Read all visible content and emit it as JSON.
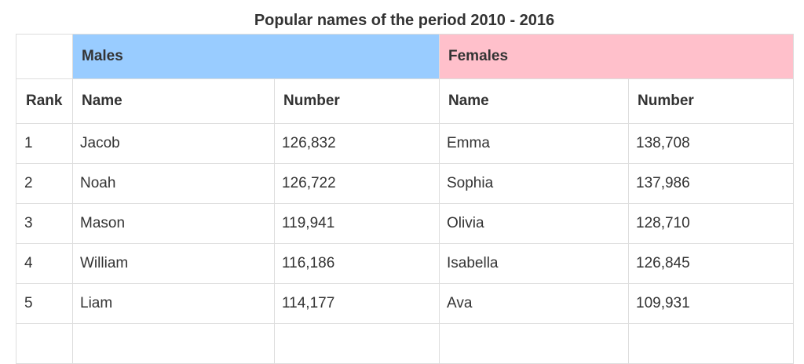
{
  "caption": "Popular names of the period 2010 - 2016",
  "groups": {
    "males": "Males",
    "females": "Females"
  },
  "headers": {
    "rank": "Rank",
    "male_name": "Name",
    "male_number": "Number",
    "female_name": "Name",
    "female_number": "Number"
  },
  "rows": [
    {
      "rank": "1",
      "male_name": "Jacob",
      "male_number": "126,832",
      "female_name": "Emma",
      "female_number": "138,708"
    },
    {
      "rank": "2",
      "male_name": "Noah",
      "male_number": "126,722",
      "female_name": "Sophia",
      "female_number": "137,986"
    },
    {
      "rank": "3",
      "male_name": "Mason",
      "male_number": "119,941",
      "female_name": "Olivia",
      "female_number": "128,710"
    },
    {
      "rank": "4",
      "male_name": "William",
      "male_number": "116,186",
      "female_name": "Isabella",
      "female_number": "126,845"
    },
    {
      "rank": "5",
      "male_name": "Liam",
      "male_number": "114,177",
      "female_name": "Ava",
      "female_number": "109,931"
    }
  ],
  "colors": {
    "males_header": "#99ccff",
    "females_header": "#ffc0cb",
    "border": "#dddddd",
    "text": "#333333"
  }
}
